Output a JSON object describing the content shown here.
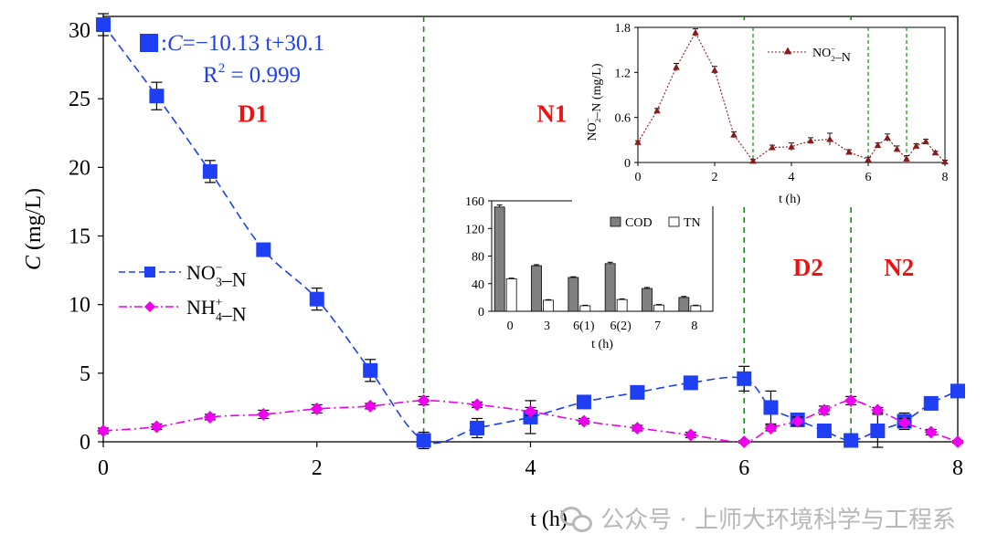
{
  "chart_data": [
    {
      "type": "scatter",
      "title": "",
      "xlabel": "t (h)",
      "ylabel": "C (mg/L)",
      "xlim": [
        0,
        8
      ],
      "ylim": [
        0,
        31
      ],
      "xticks": [
        0,
        2,
        4,
        6,
        8
      ],
      "yticks": [
        0,
        5,
        10,
        15,
        20,
        25,
        30
      ],
      "legend_position": "left-middle",
      "phase_lines": [
        3,
        6,
        7
      ],
      "phases": [
        {
          "label": "D1",
          "x": 1.4,
          "y": 23.3
        },
        {
          "label": "N1",
          "x": 4.2,
          "y": 23.3
        },
        {
          "label": "D2",
          "x": 6.6,
          "y": 12.1
        },
        {
          "label": "N2",
          "x": 7.45,
          "y": 12.1
        }
      ],
      "equation": {
        "prefix": ":",
        "text": "C=−10.13 t+30.1",
        "r2_label": "R",
        "r2_sup": "2",
        "r2_value": "= 0.999"
      },
      "series": [
        {
          "name": "NO₃⁻–N",
          "color": "#1f3ff5",
          "marker": "square",
          "x": [
            0,
            0.5,
            1,
            1.5,
            2,
            2.5,
            3,
            3.5,
            4,
            4.5,
            5,
            5.5,
            6,
            6.25,
            6.5,
            6.75,
            7,
            7.25,
            7.5,
            7.75,
            8
          ],
          "y": [
            30.4,
            25.2,
            19.7,
            14.0,
            10.4,
            5.2,
            0.1,
            1.0,
            1.8,
            2.9,
            3.6,
            4.3,
            4.6,
            2.5,
            1.6,
            0.8,
            0.1,
            0.8,
            1.5,
            2.8,
            3.7
          ],
          "err": [
            0.8,
            1.0,
            0.8,
            0.3,
            0.8,
            0.8,
            0.6,
            0.7,
            1.2,
            0.4,
            0.3,
            0.3,
            0.9,
            1.2,
            0.3,
            0.3,
            0.3,
            1.2,
            0.6,
            0.3,
            0.3
          ]
        },
        {
          "name": "NH₄⁺–N",
          "color": "#ee00ee",
          "marker": "diamond",
          "x": [
            0,
            0.5,
            1,
            1.5,
            2,
            2.5,
            3,
            3.5,
            4,
            4.5,
            5,
            5.5,
            6,
            6.25,
            6.5,
            6.75,
            7,
            7.25,
            7.5,
            7.75,
            8
          ],
          "y": [
            0.8,
            1.1,
            1.8,
            2.0,
            2.4,
            2.6,
            3.0,
            2.7,
            2.2,
            1.5,
            1.0,
            0.5,
            0.0,
            1.0,
            1.5,
            2.3,
            3.0,
            2.3,
            1.4,
            0.7,
            0.0
          ],
          "err": [
            0.2,
            0.2,
            0.2,
            0.3,
            0.3,
            0.2,
            0.3,
            0.2,
            0.3,
            0.2,
            0.2,
            0.2,
            0.1,
            0.2,
            0.3,
            0.3,
            0.3,
            0.2,
            0.3,
            0.2,
            0.1
          ]
        }
      ]
    },
    {
      "type": "line",
      "title": "",
      "xlabel": "t (h)",
      "ylabel": "NO₂⁻–N (mg/L)",
      "xlim": [
        0,
        8
      ],
      "ylim": [
        0,
        1.8
      ],
      "xticks": [
        0,
        2,
        4,
        6,
        8
      ],
      "yticks": [
        0,
        0.6,
        1.2,
        1.8
      ],
      "ytick_labels": [
        "0",
        "0.6",
        "1.2",
        "1.8"
      ],
      "phase_lines": [
        3,
        6,
        7
      ],
      "legend_position": "top-right",
      "series": [
        {
          "name": "NO₂⁻–N",
          "color": "#8b1a1a",
          "marker": "triangle",
          "x": [
            0,
            0.5,
            1,
            1.5,
            2,
            2.5,
            3,
            3.5,
            4,
            4.5,
            5,
            5.5,
            6,
            6.25,
            6.5,
            6.75,
            7,
            7.25,
            7.5,
            7.75,
            8
          ],
          "y": [
            0.27,
            0.69,
            1.27,
            1.73,
            1.23,
            0.37,
            0.02,
            0.2,
            0.21,
            0.29,
            0.31,
            0.14,
            0.04,
            0.23,
            0.33,
            0.18,
            0.05,
            0.22,
            0.28,
            0.13,
            0.01
          ],
          "err": [
            0.02,
            0.03,
            0.05,
            0.05,
            0.05,
            0.04,
            0.02,
            0.03,
            0.05,
            0.04,
            0.08,
            0.03,
            0.03,
            0.03,
            0.05,
            0.04,
            0.04,
            0.03,
            0.03,
            0.02,
            0.02
          ]
        }
      ]
    },
    {
      "type": "bar",
      "title": "",
      "xlabel": "t (h)",
      "ylabel": "",
      "categories": [
        "0",
        "3",
        "6(1)",
        "6(2)",
        "7",
        "8"
      ],
      "ylim": [
        0,
        160
      ],
      "yticks": [
        0,
        40,
        80,
        120,
        160
      ],
      "legend_position": "top-right",
      "series": [
        {
          "name": "COD",
          "color": "#808080",
          "values": [
            151,
            66,
            49,
            69,
            33,
            20
          ],
          "err": [
            3,
            1.5,
            1,
            2,
            1.5,
            1.5
          ]
        },
        {
          "name": "TN",
          "color": "#ffffff",
          "values": [
            47,
            16,
            8,
            17,
            9,
            8
          ],
          "err": [
            1,
            0.8,
            0.8,
            1,
            0.8,
            0.8
          ]
        }
      ]
    }
  ],
  "watermark": "公众号 · 上师大环境科学与工程系"
}
